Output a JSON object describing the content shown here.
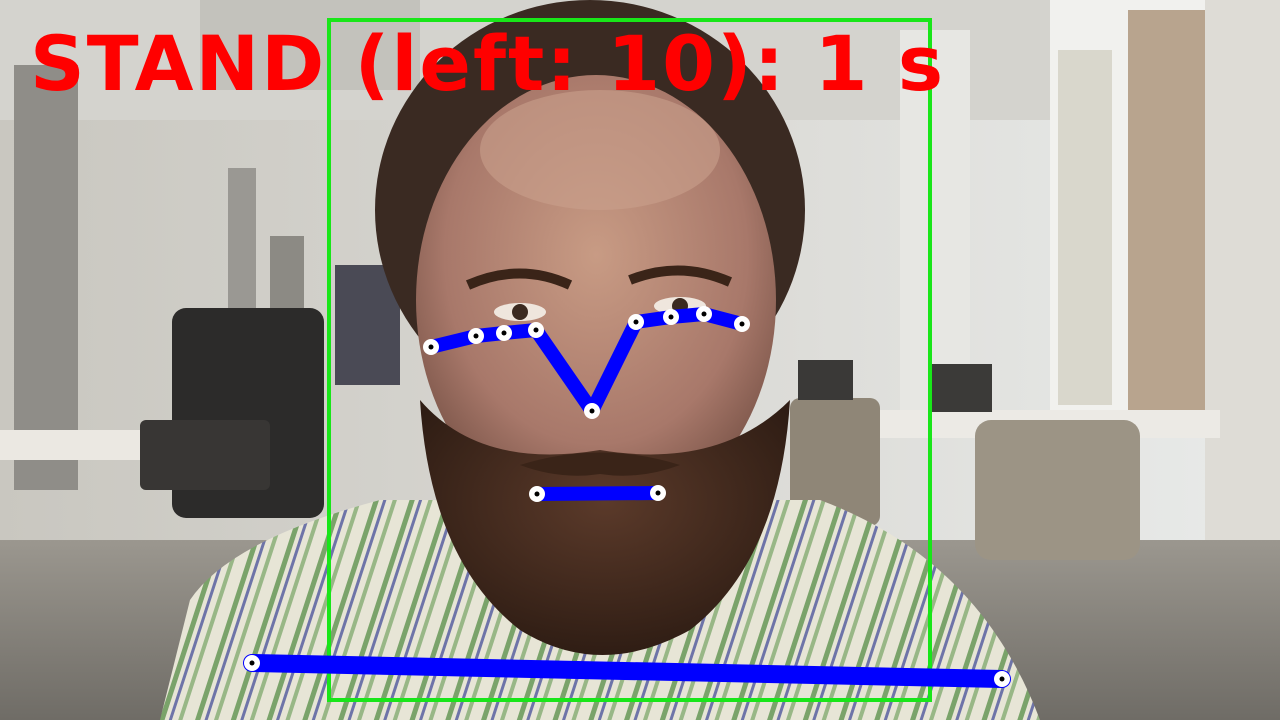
{
  "overlay": {
    "status_text": "STAND (left: 10): 1 s",
    "status_color": "#ff0000",
    "box_color": "#19e619",
    "pose_color": "#0000ff",
    "keypoint_fill": "#ffffff",
    "keypoint_center": "#000000"
  },
  "scene": {
    "subject": "bearded-man-in-striped-shirt",
    "setting": "office-with-windows"
  }
}
